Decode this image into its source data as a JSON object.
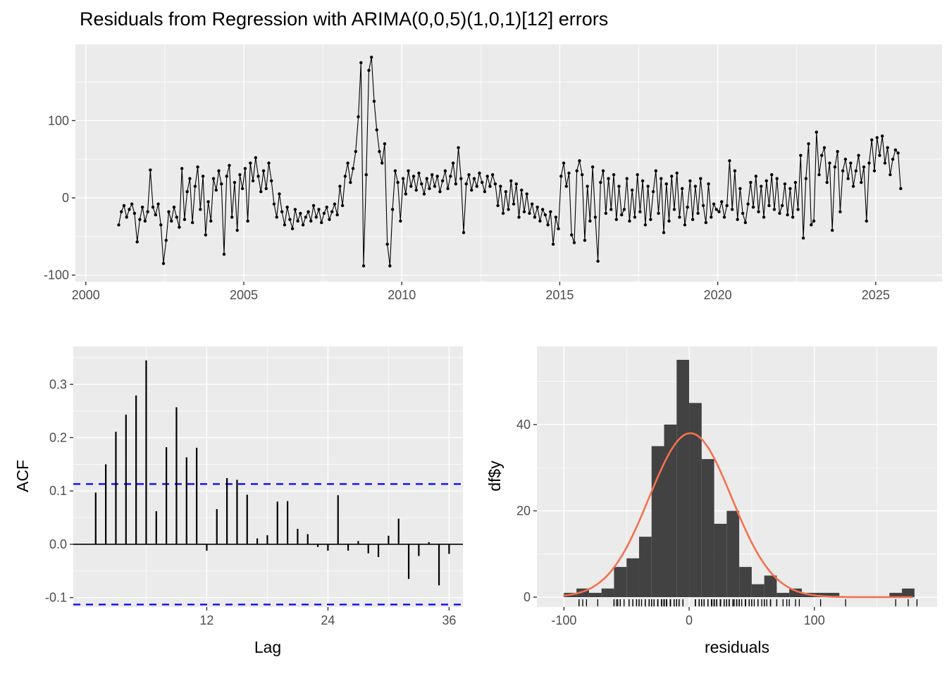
{
  "figure": {
    "type": "residual-diagnostics",
    "panel_count": 3
  },
  "colors": {
    "panel_bg": "#EBEBEB",
    "grid": "#FFFFFF",
    "series": "#000000",
    "conf_line": "#0000FF",
    "hist_fill": "#424242",
    "curve": "#F4714E",
    "tick_label": "#4D4D4D",
    "tick_mark": "#333333",
    "title": "#000000"
  },
  "chart_data": [
    {
      "id": "residual_ts",
      "type": "line",
      "title": "Residuals from Regression with ARIMA(0,0,5)(1,0,1)[12] errors",
      "xlabel": "",
      "ylabel": "",
      "marker": "point+line",
      "x_start": 2001.0417,
      "x_step": 0.0833333,
      "xlim": [
        1999.67,
        2027.1
      ],
      "ylim": [
        -108.5,
        198.7
      ],
      "xtick_values": [
        2000,
        2005,
        2010,
        2015,
        2020,
        2025
      ],
      "xtick_labels": [
        "2000",
        "2005",
        "2010",
        "2015",
        "2020",
        "2025"
      ],
      "ytick_values": [
        -100,
        0,
        100
      ],
      "ytick_labels": [
        "-100",
        "0",
        "100"
      ],
      "grid": true,
      "values": [
        -35,
        -18,
        -10,
        -25,
        -15,
        -8,
        -20,
        -57,
        -28,
        -12,
        -30,
        -18,
        36,
        -12,
        -22,
        -8,
        -35,
        -85,
        -55,
        -18,
        -30,
        -12,
        -25,
        -38,
        38,
        -28,
        8,
        25,
        -32,
        15,
        40,
        -15,
        28,
        -48,
        -5,
        -30,
        25,
        10,
        35,
        18,
        -73,
        28,
        42,
        -25,
        20,
        -42,
        30,
        12,
        38,
        -30,
        45,
        22,
        52,
        28,
        8,
        35,
        12,
        45,
        22,
        -8,
        -25,
        5,
        -18,
        -35,
        -12,
        -28,
        -40,
        -15,
        -30,
        -20,
        -35,
        -25,
        -18,
        -30,
        -10,
        -25,
        -15,
        -32,
        -20,
        -12,
        -28,
        -18,
        -8,
        -22,
        15,
        -10,
        28,
        45,
        20,
        38,
        60,
        105,
        175,
        -88,
        30,
        165,
        182,
        125,
        88,
        60,
        45,
        70,
        -60,
        -88,
        -15,
        35,
        20,
        -30,
        25,
        5,
        35,
        15,
        28,
        10,
        32,
        18,
        5,
        25,
        12,
        30,
        15,
        28,
        8,
        22,
        35,
        12,
        28,
        45,
        18,
        65,
        25,
        -45,
        18,
        30,
        10,
        25,
        15,
        32,
        20,
        8,
        28,
        15,
        30,
        18,
        -10,
        15,
        -20,
        8,
        -15,
        22,
        -8,
        18,
        -25,
        10,
        -18,
        5,
        -20,
        -8,
        -25,
        -12,
        -30,
        -15,
        -22,
        -35,
        -18,
        -60,
        -25,
        -40,
        28,
        45,
        15,
        32,
        -48,
        -58,
        35,
        48,
        30,
        -55,
        15,
        -30,
        40,
        -25,
        -82,
        20,
        35,
        -20,
        25,
        -15,
        30,
        -28,
        15,
        -22,
        -15,
        25,
        -30,
        10,
        -25,
        30,
        -18,
        22,
        -35,
        15,
        -28,
        8,
        35,
        -20,
        25,
        -45,
        18,
        -30,
        28,
        -15,
        32,
        -25,
        12,
        -35,
        -12,
        22,
        -28,
        15,
        -20,
        25,
        -10,
        -32,
        18,
        -25,
        -8,
        -15,
        -18,
        -5,
        -25,
        -10,
        48,
        -15,
        35,
        -28,
        12,
        -20,
        -32,
        -8,
        20,
        -12,
        28,
        -18,
        15,
        -25,
        22,
        -10,
        30,
        -15,
        25,
        -20,
        -10,
        18,
        -22,
        12,
        -25,
        20,
        -15,
        55,
        -52,
        25,
        70,
        -35,
        -30,
        85,
        30,
        55,
        65,
        20,
        45,
        -42,
        40,
        60,
        -18,
        35,
        50,
        25,
        45,
        15,
        35,
        55,
        20,
        40,
        -30,
        45,
        75,
        35,
        78,
        55,
        80,
        45,
        65,
        30,
        50,
        62,
        58,
        12
      ]
    },
    {
      "id": "acf",
      "type": "bar",
      "title": "",
      "xlabel": "Lag",
      "ylabel": "ACF",
      "lag_start": 1,
      "conf_band": 0.113,
      "xlim": [
        -1.22,
        37.37
      ],
      "ylim": [
        -0.1176,
        0.371
      ],
      "xtick_values": [
        12,
        24,
        36
      ],
      "xtick_labels": [
        "12",
        "24",
        "36"
      ],
      "ytick_values": [
        -0.1,
        0.0,
        0.1,
        0.2,
        0.3
      ],
      "ytick_labels": [
        "-0.1",
        "0.0",
        "0.1",
        "0.2",
        "0.3"
      ],
      "grid": true,
      "values": [
        0.097,
        0.15,
        0.211,
        0.243,
        0.279,
        0.345,
        0.062,
        0.182,
        0.257,
        0.163,
        0.181,
        -0.012,
        0.066,
        0.124,
        0.121,
        0.093,
        0.011,
        0.017,
        0.08,
        0.081,
        0.029,
        0.019,
        -0.005,
        -0.012,
        0.092,
        -0.012,
        0.006,
        -0.017,
        -0.024,
        0.016,
        0.048,
        -0.065,
        -0.022,
        0.004,
        -0.077,
        -0.018
      ]
    },
    {
      "id": "residual_hist",
      "type": "histogram",
      "title": "",
      "xlabel": "residuals",
      "ylabel": "df$y",
      "bin_start": -100,
      "bin_width": 10,
      "xlim": [
        -121.6,
        198.1
      ],
      "ylim": [
        -2.28,
        58.1
      ],
      "xtick_values": [
        -100,
        0,
        100
      ],
      "xtick_labels": [
        "-100",
        "0",
        "100"
      ],
      "ytick_values": [
        0,
        20,
        40
      ],
      "ytick_labels": [
        "0",
        "20",
        "40"
      ],
      "grid": true,
      "counts": [
        1,
        2,
        1,
        2,
        7,
        9,
        14,
        35,
        40,
        55,
        45,
        32,
        17,
        20,
        7,
        3,
        5,
        1,
        2,
        1,
        1,
        1,
        0,
        0,
        0,
        0,
        1,
        2
      ],
      "normal_curve": {
        "mean": 1,
        "sd": 33,
        "peak": 38,
        "x_from": -100,
        "x_to": 178
      },
      "rug_source": "residual_ts"
    }
  ]
}
